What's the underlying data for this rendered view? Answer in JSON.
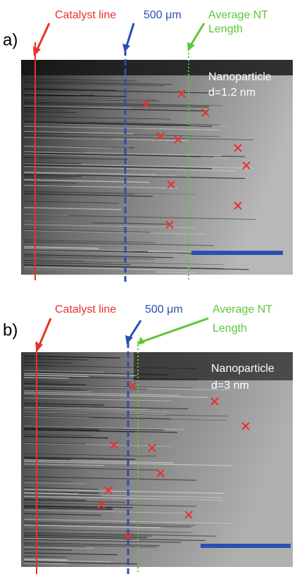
{
  "panels": [
    {
      "label": "a)",
      "catalyst": "Catalyst line",
      "scale": "500 μm",
      "average": [
        "Average NT",
        "Length"
      ],
      "particle": [
        "Nanoparticle",
        "d=1.2 nm"
      ]
    },
    {
      "label": "b)",
      "catalyst": "Catalyst line",
      "scale": "500 μm",
      "average": [
        "Average NT",
        "Length"
      ],
      "particle": [
        "Nanoparticle",
        "d=3 nm"
      ]
    }
  ]
}
